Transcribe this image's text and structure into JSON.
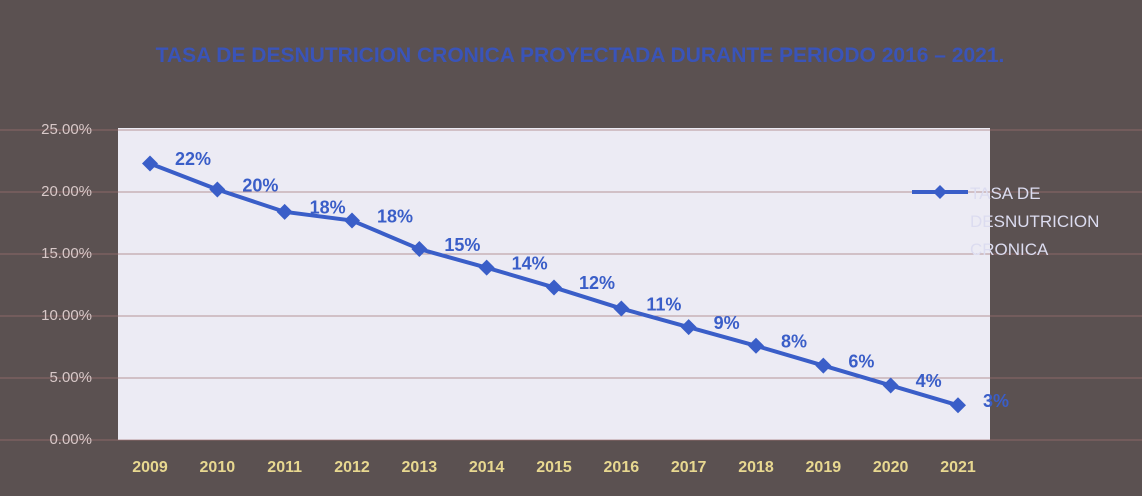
{
  "chart_data": {
    "type": "line",
    "title": "TASA DE DESNUTRICION CRONICA PROYECTADA DURANTE PERIODO 2016 – 2021.",
    "categories": [
      "2009",
      "2010",
      "2011",
      "2012",
      "2013",
      "2014",
      "2015",
      "2016",
      "2017",
      "2018",
      "2019",
      "2020",
      "2021"
    ],
    "series": [
      {
        "name": "TASA DE DESNUTRICION CRONICA",
        "color": "#3a5ec8",
        "values": [
          22.3,
          20.2,
          18.4,
          17.7,
          15.4,
          13.9,
          12.3,
          10.6,
          9.1,
          7.6,
          6.0,
          4.4,
          2.8
        ],
        "value_labels": [
          "22%",
          "20%",
          "18%",
          "18%",
          "15%",
          "14%",
          "12%",
          "11%",
          "9%",
          "8%",
          "6%",
          "4%",
          "3%"
        ]
      }
    ],
    "ylim": [
      0,
      25
    ],
    "yticks": [
      {
        "value": 0,
        "label": "0.00%"
      },
      {
        "value": 5,
        "label": "5.00%"
      },
      {
        "value": 10,
        "label": "10.00%"
      },
      {
        "value": 15,
        "label": "15.00%"
      },
      {
        "value": 20,
        "label": "20.00%"
      },
      {
        "value": 25,
        "label": "25.00%"
      }
    ],
    "grid": true,
    "legend": "right"
  }
}
